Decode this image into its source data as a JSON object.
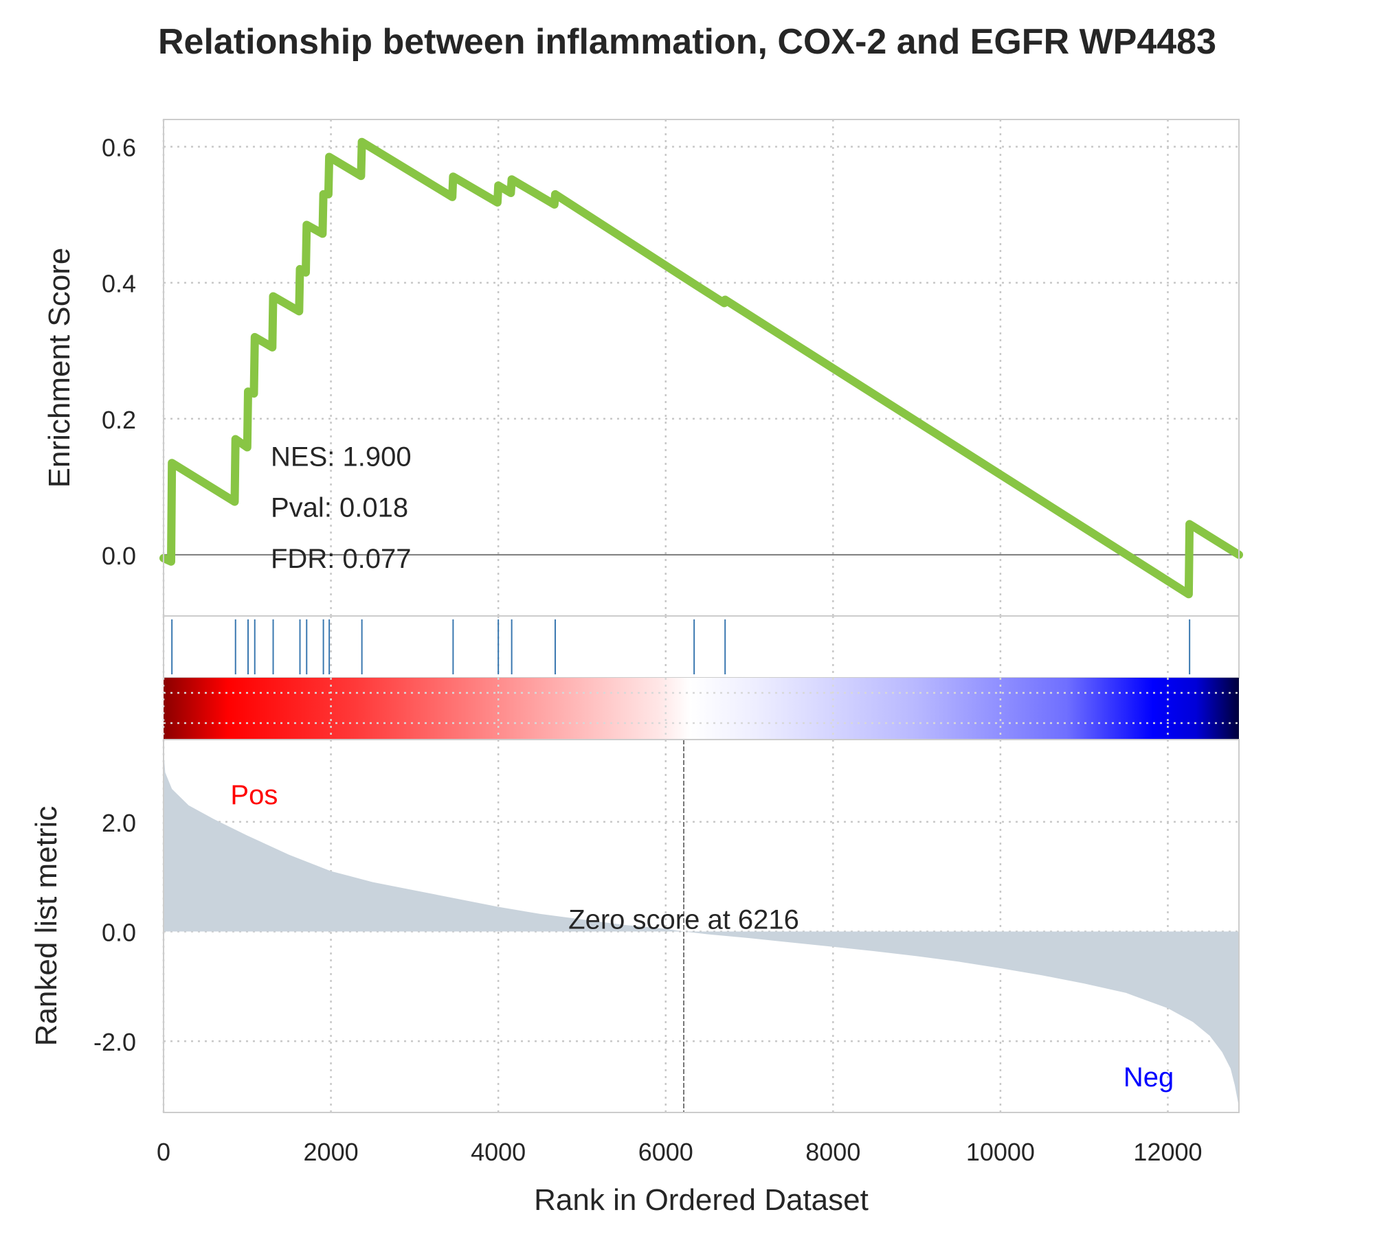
{
  "chart_data": {
    "type": "line",
    "title": "Relationship between inflammation, COX-2 and EGFR WP4483",
    "xlabel": "Rank in Ordered Dataset",
    "xlim": [
      0,
      12850
    ],
    "xticks": [
      0,
      2000,
      4000,
      6000,
      8000,
      10000,
      12000
    ],
    "xtick_labels": [
      "0",
      "2000",
      "4000",
      "6000",
      "8000",
      "10000",
      "12000"
    ],
    "grid": true,
    "colors": {
      "es_line": "#88c544",
      "hits": "#3a78b0",
      "metric_fill": "#c9d3dc",
      "pos": "#ff0000",
      "neg": "#0000ff"
    },
    "es_panel": {
      "ylabel": "Enrichment Score",
      "ylim": [
        -0.09,
        0.64
      ],
      "yticks": [
        0.0,
        0.2,
        0.4,
        0.6
      ],
      "ytick_labels": [
        "0.0",
        "0.2",
        "0.4",
        "0.6"
      ],
      "curve": [
        [
          0,
          -0.005
        ],
        [
          90,
          -0.01
        ],
        [
          100,
          0.135
        ],
        [
          850,
          0.078
        ],
        [
          860,
          0.17
        ],
        [
          1000,
          0.158
        ],
        [
          1010,
          0.24
        ],
        [
          1080,
          0.237
        ],
        [
          1090,
          0.32
        ],
        [
          1300,
          0.305
        ],
        [
          1310,
          0.38
        ],
        [
          1620,
          0.358
        ],
        [
          1630,
          0.42
        ],
        [
          1700,
          0.415
        ],
        [
          1710,
          0.485
        ],
        [
          1900,
          0.472
        ],
        [
          1910,
          0.53
        ],
        [
          1970,
          0.53
        ],
        [
          1980,
          0.585
        ],
        [
          2360,
          0.557
        ],
        [
          2370,
          0.607
        ],
        [
          3450,
          0.526
        ],
        [
          3460,
          0.556
        ],
        [
          3990,
          0.518
        ],
        [
          4000,
          0.543
        ],
        [
          4150,
          0.532
        ],
        [
          4160,
          0.552
        ],
        [
          4670,
          0.515
        ],
        [
          4680,
          0.53
        ],
        [
          6330,
          0.399
        ],
        [
          6700,
          0.37
        ],
        [
          6710,
          0.375
        ],
        [
          12250,
          -0.058
        ],
        [
          12260,
          0.045
        ],
        [
          12850,
          0.0
        ]
      ],
      "stats": [
        {
          "label": "NES: 1.900"
        },
        {
          "label": "Pval: 0.018"
        },
        {
          "label": "FDR: 0.077"
        }
      ]
    },
    "hits": [
      100,
      860,
      1010,
      1090,
      1310,
      1630,
      1710,
      1910,
      1980,
      2370,
      3460,
      4000,
      4160,
      4680,
      6340,
      6710,
      12260
    ],
    "metric_panel": {
      "ylabel": "Ranked list metric",
      "ylim": [
        -3.3,
        3.5
      ],
      "yticks": [
        -2.0,
        0.0,
        2.0
      ],
      "ytick_labels": [
        "-2.0",
        "0.0",
        "2.0"
      ],
      "curve": [
        [
          0,
          3.3
        ],
        [
          20,
          2.9
        ],
        [
          100,
          2.6
        ],
        [
          300,
          2.3
        ],
        [
          600,
          2.05
        ],
        [
          1000,
          1.75
        ],
        [
          1500,
          1.4
        ],
        [
          2000,
          1.1
        ],
        [
          2500,
          0.9
        ],
        [
          3000,
          0.75
        ],
        [
          3500,
          0.6
        ],
        [
          4000,
          0.45
        ],
        [
          4500,
          0.32
        ],
        [
          5000,
          0.22
        ],
        [
          5500,
          0.12
        ],
        [
          6000,
          0.05
        ],
        [
          6216,
          0.0
        ],
        [
          6500,
          -0.05
        ],
        [
          7000,
          -0.12
        ],
        [
          7500,
          -0.2
        ],
        [
          8000,
          -0.28
        ],
        [
          8500,
          -0.36
        ],
        [
          9000,
          -0.45
        ],
        [
          9500,
          -0.55
        ],
        [
          10000,
          -0.67
        ],
        [
          10500,
          -0.8
        ],
        [
          11000,
          -0.95
        ],
        [
          11500,
          -1.12
        ],
        [
          12000,
          -1.4
        ],
        [
          12300,
          -1.65
        ],
        [
          12500,
          -1.9
        ],
        [
          12650,
          -2.2
        ],
        [
          12750,
          -2.5
        ],
        [
          12800,
          -2.8
        ],
        [
          12850,
          -3.2
        ]
      ],
      "zero_score_rank": 6216,
      "zero_label": "Zero score at 6216",
      "pos_label": "Pos",
      "neg_label": "Neg"
    }
  }
}
